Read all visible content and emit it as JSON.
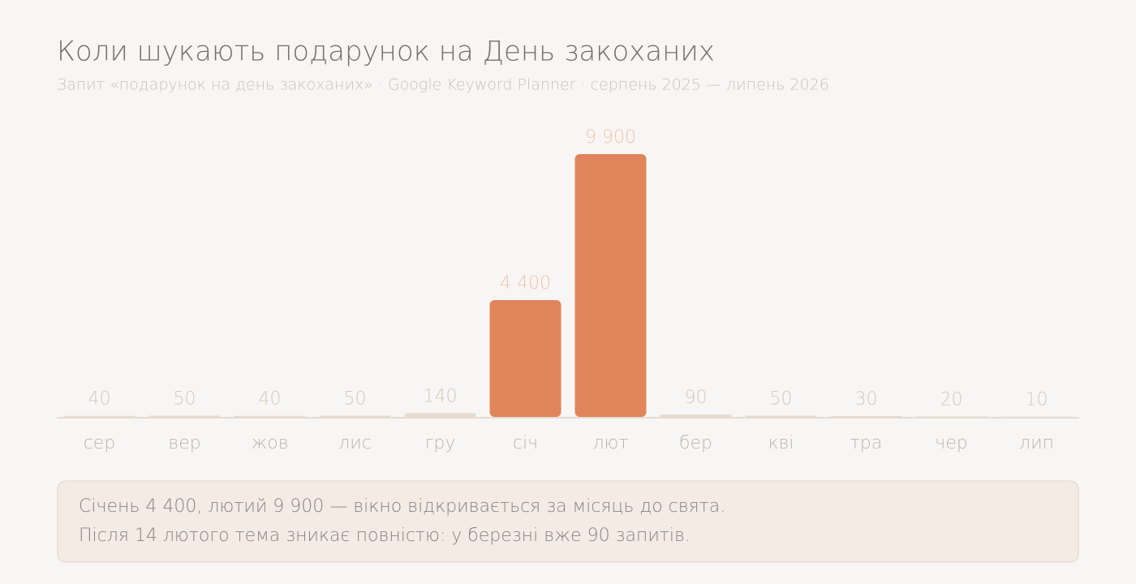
{
  "chart_data": {
    "type": "bar",
    "title": "Коли шукають подарунок на День закоханих",
    "subtitle": "Запит «подарунок на день закоханих» · Google Keyword Planner · серпень 2025 — липень 2026",
    "categories": [
      "сер",
      "вер",
      "жов",
      "лис",
      "гру",
      "січ",
      "лют",
      "бер",
      "кві",
      "тра",
      "чер",
      "лип"
    ],
    "values": [
      40,
      50,
      40,
      50,
      140,
      4400,
      9900,
      90,
      50,
      30,
      20,
      10
    ],
    "value_labels": [
      "40",
      "50",
      "40",
      "50",
      "140",
      "4 400",
      "9 900",
      "90",
      "50",
      "30",
      "20",
      "10"
    ],
    "colors": [
      "#e5dbcf",
      "#e5dbcf",
      "#e5dbcf",
      "#e5dbcf",
      "#e5dbcf",
      "#e0855b",
      "#e0855b",
      "#e5dbcf",
      "#e5dbcf",
      "#e5dbcf",
      "#e5dbcf",
      "#e5dbcf"
    ],
    "annotation": [
      "Січень 4 400, лютий 9 900 — вікно відкривається за місяць до свята.",
      "Після 14 лютого тема зникає повністю: у березні вже 90 запитів."
    ]
  }
}
